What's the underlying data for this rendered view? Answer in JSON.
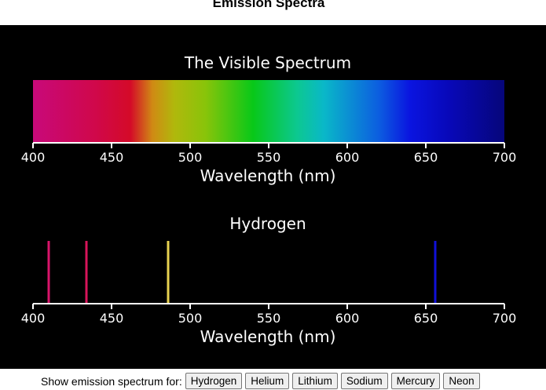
{
  "page": {
    "title": "Emission Spectra"
  },
  "spectrum_panel": {
    "title": "The Visible Spectrum",
    "xlabel": "Wavelength (nm)",
    "ticks": [
      "400",
      "450",
      "500",
      "550",
      "600",
      "650",
      "700"
    ]
  },
  "emission_panel": {
    "title": "Hydrogen",
    "xlabel": "Wavelength (nm)",
    "ticks": [
      "400",
      "450",
      "500",
      "550",
      "600",
      "650",
      "700"
    ]
  },
  "controls": {
    "label": "Show emission spectrum for:",
    "buttons": [
      "Hydrogen",
      "Helium",
      "Lithium",
      "Sodium",
      "Mercury",
      "Neon"
    ]
  },
  "chart_data": [
    {
      "type": "area",
      "title": "The Visible Spectrum",
      "xlabel": "Wavelength (nm)",
      "xlim": [
        400,
        700
      ],
      "gradient_stops": [
        {
          "nm": 400,
          "color": "#c8097a"
        },
        {
          "nm": 440,
          "color": "#d0084a"
        },
        {
          "nm": 462,
          "color": "#d40a28"
        },
        {
          "nm": 476,
          "color": "#d08a14"
        },
        {
          "nm": 490,
          "color": "#b0b80c"
        },
        {
          "nm": 510,
          "color": "#88c40a"
        },
        {
          "nm": 540,
          "color": "#08c818"
        },
        {
          "nm": 568,
          "color": "#0cc890"
        },
        {
          "nm": 585,
          "color": "#0ab8c8"
        },
        {
          "nm": 620,
          "color": "#0c5ee0"
        },
        {
          "nm": 640,
          "color": "#0a14e0"
        },
        {
          "nm": 665,
          "color": "#0808b8"
        },
        {
          "nm": 700,
          "color": "#06067a"
        }
      ]
    },
    {
      "type": "bar",
      "title": "Hydrogen",
      "xlabel": "Wavelength (nm)",
      "xlim": [
        400,
        700
      ],
      "lines": [
        {
          "nm": 410,
          "color": "#d8146a"
        },
        {
          "nm": 434,
          "color": "#d8145a"
        },
        {
          "nm": 486,
          "color": "#e8d250"
        },
        {
          "nm": 656,
          "color": "#1010d8"
        }
      ]
    }
  ]
}
